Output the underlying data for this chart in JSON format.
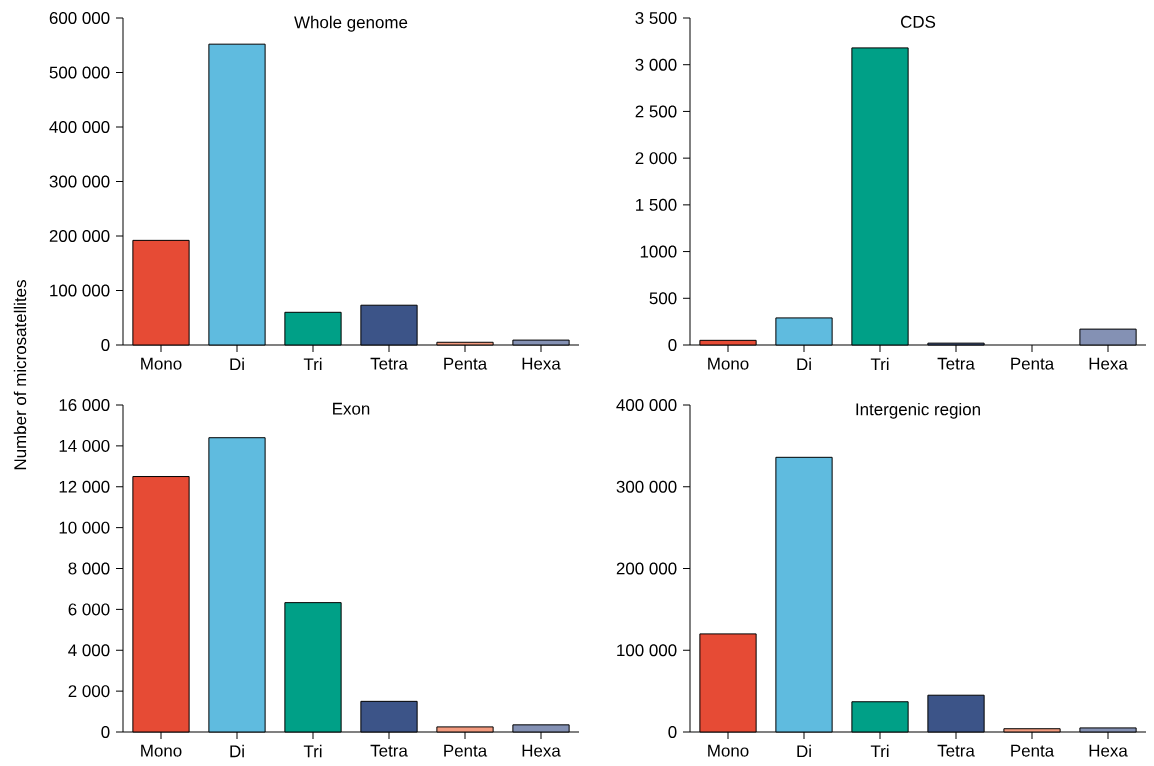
{
  "chart_data": [
    {
      "type": "bar",
      "title": "Whole genome",
      "ylabel": "Number of microsatellites",
      "categories": [
        "Mono",
        "Di",
        "Tri",
        "Tetra",
        "Penta",
        "Hexa"
      ],
      "values": [
        192000,
        552000,
        60000,
        73000,
        5000,
        9000
      ],
      "colors": [
        "#e64b35",
        "#5fbbdf",
        "#00a087",
        "#3c5488",
        "#f39b7f",
        "#8491b4"
      ],
      "ylim": [
        0,
        600000
      ],
      "yticks": [
        0,
        {
          "value": 100000,
          "label": "100 000"
        },
        {
          "value": 200000,
          "label": "200 000"
        },
        {
          "value": 300000,
          "label": "300 000"
        },
        {
          "value": 400000,
          "label": "400 000"
        },
        {
          "value": 500000,
          "label": "500 000"
        },
        {
          "value": 600000,
          "label": "600 000"
        }
      ]
    },
    {
      "type": "bar",
      "title": "CDS",
      "categories": [
        "Mono",
        "Di",
        "Tri",
        "Tetra",
        "Penta",
        "Hexa"
      ],
      "values": [
        50,
        290,
        3180,
        20,
        null,
        170
      ],
      "colors": [
        "#e64b35",
        "#5fbbdf",
        "#00a087",
        "#3c5488",
        "#f39b7f",
        "#8491b4"
      ],
      "ylim": [
        0,
        3500
      ],
      "yticks": [
        0,
        500,
        1000,
        {
          "value": 1500,
          "label": "1 500"
        },
        {
          "value": 2000,
          "label": "2 000"
        },
        {
          "value": 2500,
          "label": "2 500"
        },
        {
          "value": 3000,
          "label": "3 000"
        },
        {
          "value": 3500,
          "label": "3 500"
        }
      ]
    },
    {
      "type": "bar",
      "title": "Exon",
      "categories": [
        "Mono",
        "Di",
        "Tri",
        "Tetra",
        "Penta",
        "Hexa"
      ],
      "values": [
        12500,
        14400,
        6330,
        1500,
        250,
        350
      ],
      "colors": [
        "#e64b35",
        "#5fbbdf",
        "#00a087",
        "#3c5488",
        "#f39b7f",
        "#8491b4"
      ],
      "ylim": [
        0,
        16000
      ],
      "yticks": [
        0,
        {
          "value": 2000,
          "label": "2 000"
        },
        {
          "value": 4000,
          "label": "4 000"
        },
        {
          "value": 6000,
          "label": "6 000"
        },
        {
          "value": 8000,
          "label": "8 000"
        },
        {
          "value": 10000,
          "label": "10 000"
        },
        {
          "value": 12000,
          "label": "12 000"
        },
        {
          "value": 14000,
          "label": "14 000"
        },
        {
          "value": 16000,
          "label": "16 000"
        }
      ]
    },
    {
      "type": "bar",
      "title": "Intergenic region",
      "categories": [
        "Mono",
        "Di",
        "Tri",
        "Tetra",
        "Penta",
        "Hexa"
      ],
      "values": [
        120000,
        336000,
        37000,
        45000,
        4000,
        5000
      ],
      "colors": [
        "#e64b35",
        "#5fbbdf",
        "#00a087",
        "#3c5488",
        "#f39b7f",
        "#8491b4"
      ],
      "ylim": [
        0,
        400000
      ],
      "yticks": [
        0,
        {
          "value": 100000,
          "label": "100 000"
        },
        {
          "value": 200000,
          "label": "200 000"
        },
        {
          "value": 300000,
          "label": "300 000"
        },
        {
          "value": 400000,
          "label": "400 000"
        }
      ]
    }
  ]
}
